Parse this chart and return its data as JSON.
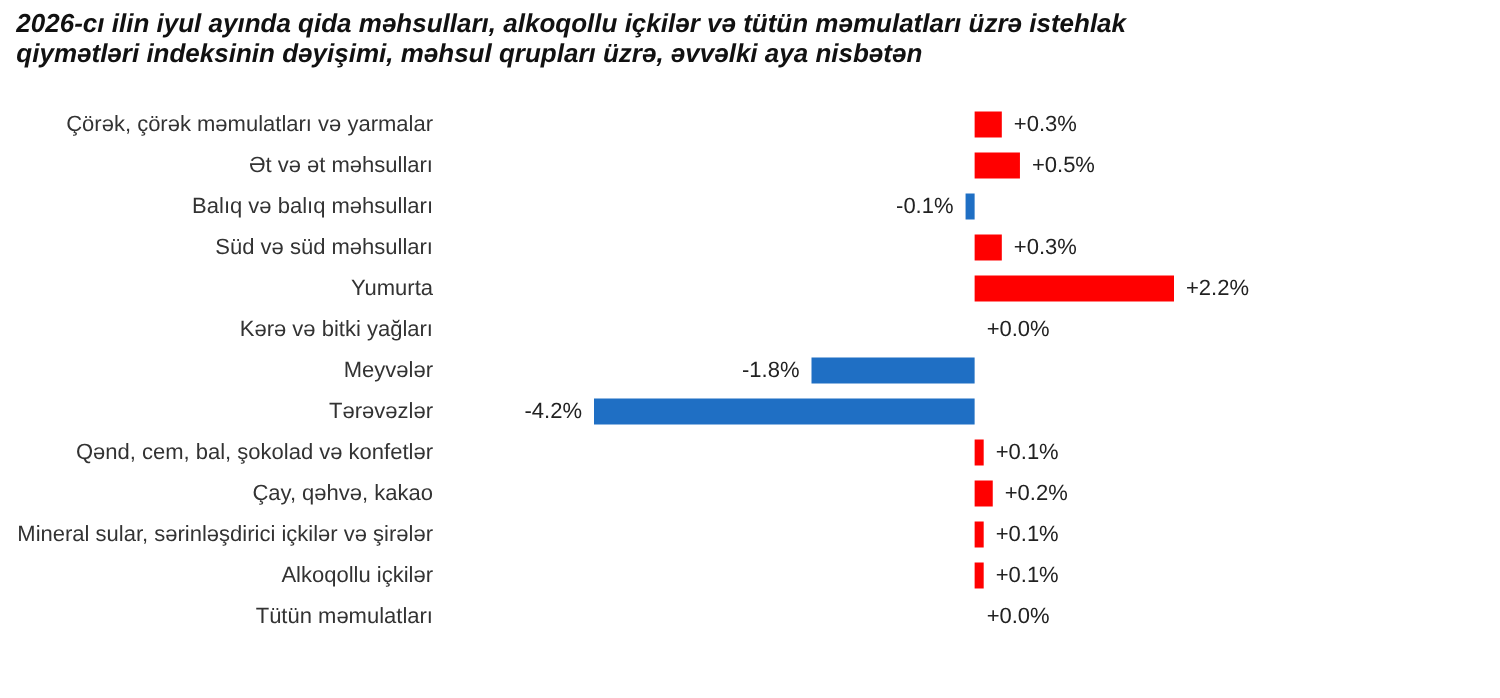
{
  "chart_data": {
    "type": "bar",
    "orientation": "horizontal",
    "title": "2026-cı ilin iyul ayında qida məhsulları, alkoqollu içkilər və tütün məmulatları üzrə istehlak qiymətləri indeksinin dəyişimi, məhsul qrupları üzrə, əvvəlki aya nisbətən",
    "categories": [
      "Çörək, çörək məmulatları və yarmalar",
      "Ət və ət məhsulları",
      "Balıq və balıq məhsulları",
      "Süd və süd məhsulları",
      "Yumurta",
      "Kərə və bitki yağları",
      "Meyvələr",
      "Tərəvəzlər",
      "Qənd, cem, bal, şokolad və konfetlər",
      "Çay, qəhvə, kakao",
      "Mineral sular, sərinləşdirici içkilər və şirələr",
      "Alkoqollu içkilər",
      "Tütün məmulatları"
    ],
    "values": [
      0.3,
      0.5,
      -0.1,
      0.3,
      2.2,
      0.0,
      -1.8,
      -4.2,
      0.1,
      0.2,
      0.1,
      0.1,
      0.0
    ],
    "colors": [
      "#ff0000",
      "#ff0000",
      "#1f6fc4",
      "#ff0000",
      "#ff0000",
      "#ff0000",
      "#1f6fc4",
      "#1f6fc4",
      "#ff0000",
      "#ff0000",
      "#ff0000",
      "#ff0000",
      "#ff0000"
    ],
    "value_labels": [
      "+0.3%",
      "+0.5%",
      "-0.1%",
      "+0.3%",
      "+2.2%",
      "+0.0%",
      "-1.8%",
      "-4.2%",
      "+0.1%",
      "+0.2%",
      "+0.1%",
      "+0.1%",
      "+0.0%"
    ]
  }
}
